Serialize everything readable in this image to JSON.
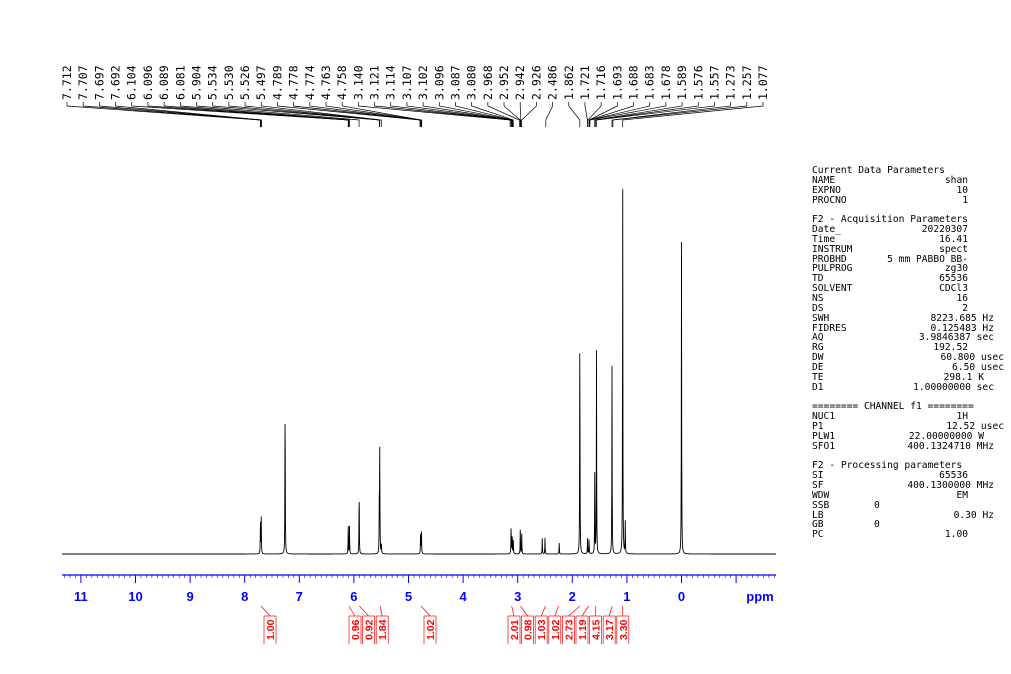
{
  "chart_data": {
    "type": "line",
    "title": "",
    "xlabel": "ppm",
    "ylabel": "",
    "xlim": [
      11.6,
      -1.75
    ],
    "x_ticks": [
      "11",
      "10",
      "9",
      "8",
      "7",
      "6",
      "5",
      "4",
      "3",
      "2",
      "1",
      "0"
    ],
    "peak_labels": [
      "7.712",
      "7.707",
      "7.697",
      "7.692",
      "6.104",
      "6.096",
      "6.089",
      "6.081",
      "5.904",
      "5.534",
      "5.530",
      "5.526",
      "5.497",
      "4.789",
      "4.778",
      "4.774",
      "4.763",
      "4.758",
      "3.140",
      "3.121",
      "3.114",
      "3.107",
      "3.102",
      "3.096",
      "3.087",
      "3.080",
      "2.968",
      "2.952",
      "2.942",
      "2.926",
      "2.486",
      "1.862",
      "1.721",
      "1.716",
      "1.693",
      "1.688",
      "1.683",
      "1.678",
      "1.589",
      "1.576",
      "1.557",
      "1.273",
      "1.257",
      "1.077"
    ],
    "peaks": [
      {
        "ppm": 7.712,
        "intensity": 0.09
      },
      {
        "ppm": 7.697,
        "intensity": 0.09
      },
      {
        "ppm": 7.26,
        "intensity": 0.44
      },
      {
        "ppm": 6.104,
        "intensity": 0.07
      },
      {
        "ppm": 6.081,
        "intensity": 0.07
      },
      {
        "ppm": 5.904,
        "intensity": 0.18
      },
      {
        "ppm": 5.534,
        "intensity": 0.16
      },
      {
        "ppm": 5.526,
        "intensity": 0.25
      },
      {
        "ppm": 5.497,
        "intensity": 0.03
      },
      {
        "ppm": 4.778,
        "intensity": 0.07
      },
      {
        "ppm": 4.763,
        "intensity": 0.06
      },
      {
        "ppm": 3.121,
        "intensity": 0.08
      },
      {
        "ppm": 3.102,
        "intensity": 0.06
      },
      {
        "ppm": 3.08,
        "intensity": 0.04
      },
      {
        "ppm": 2.952,
        "intensity": 0.07
      },
      {
        "ppm": 2.926,
        "intensity": 0.05
      },
      {
        "ppm": 2.55,
        "intensity": 0.04
      },
      {
        "ppm": 2.5,
        "intensity": 0.04
      },
      {
        "ppm": 2.24,
        "intensity": 0.03
      },
      {
        "ppm": 1.862,
        "intensity": 0.62
      },
      {
        "ppm": 1.721,
        "intensity": 0.04
      },
      {
        "ppm": 1.693,
        "intensity": 0.04
      },
      {
        "ppm": 1.589,
        "intensity": 0.2
      },
      {
        "ppm": 1.557,
        "intensity": 0.51
      },
      {
        "ppm": 1.273,
        "intensity": 0.47
      },
      {
        "ppm": 1.077,
        "intensity": 1.0
      },
      {
        "ppm": 1.03,
        "intensity": 0.08
      },
      {
        "ppm": 0.0,
        "intensity": 0.78
      }
    ],
    "integrals": [
      {
        "ppm": 7.7,
        "value": "1.00"
      },
      {
        "ppm": 6.09,
        "value": "0.96"
      },
      {
        "ppm": 5.9,
        "value": "0.92"
      },
      {
        "ppm": 5.52,
        "value": "1.84"
      },
      {
        "ppm": 4.77,
        "value": "1.02"
      },
      {
        "ppm": 3.11,
        "value": "2.01"
      },
      {
        "ppm": 2.95,
        "value": "0.98"
      },
      {
        "ppm": 2.49,
        "value": "1.03"
      },
      {
        "ppm": 2.25,
        "value": "1.02"
      },
      {
        "ppm": 1.86,
        "value": "2.73"
      },
      {
        "ppm": 1.7,
        "value": "1.19"
      },
      {
        "ppm": 1.57,
        "value": "4.15"
      },
      {
        "ppm": 1.27,
        "value": "3.17"
      },
      {
        "ppm": 1.08,
        "value": "3.30"
      }
    ]
  },
  "params": {
    "current_title": "Current Data Parameters",
    "current": [
      {
        "label": "NAME",
        "value": "shan",
        "unit": ""
      },
      {
        "label": "EXPNO",
        "value": "10",
        "unit": ""
      },
      {
        "label": "PROCNO",
        "value": "1",
        "unit": ""
      }
    ],
    "acq_title": "F2 - Acquisition Parameters",
    "acq": [
      {
        "label": "Date_",
        "value": "20220307",
        "unit": ""
      },
      {
        "label": "Time",
        "value": "16.41",
        "unit": ""
      },
      {
        "label": "INSTRUM",
        "value": "spect",
        "unit": ""
      },
      {
        "label": "PROBHD",
        "value": "5 mm PABBO BB-",
        "unit": ""
      },
      {
        "label": "PULPROG",
        "value": "zg30",
        "unit": ""
      },
      {
        "label": "TD",
        "value": "65536",
        "unit": ""
      },
      {
        "label": "SOLVENT",
        "value": "CDCl3",
        "unit": ""
      },
      {
        "label": "NS",
        "value": "16",
        "unit": ""
      },
      {
        "label": "DS",
        "value": "2",
        "unit": ""
      },
      {
        "label": "SWH",
        "value": "8223.685",
        "unit": "Hz"
      },
      {
        "label": "FIDRES",
        "value": "0.125483",
        "unit": "Hz"
      },
      {
        "label": "AQ",
        "value": "3.9846387",
        "unit": "sec"
      },
      {
        "label": "RG",
        "value": "192.52",
        "unit": ""
      },
      {
        "label": "DW",
        "value": "60.800",
        "unit": "usec"
      },
      {
        "label": "DE",
        "value": "6.50",
        "unit": "usec"
      },
      {
        "label": "TE",
        "value": "298.1",
        "unit": "K"
      },
      {
        "label": "D1",
        "value": "1.00000000",
        "unit": "sec"
      }
    ],
    "channel_title": "======== CHANNEL f1 ========",
    "channel": [
      {
        "label": "NUC1",
        "value": "1H",
        "unit": ""
      },
      {
        "label": "P1",
        "value": "12.52",
        "unit": "usec"
      },
      {
        "label": "PLW1",
        "value": "22.00000000",
        "unit": "W"
      },
      {
        "label": "SFO1",
        "value": "400.1324710",
        "unit": "MHz"
      }
    ],
    "proc_title": "F2 - Processing parameters",
    "proc": [
      {
        "label": "SI",
        "value": "65536",
        "unit": ""
      },
      {
        "label": "SF",
        "value": "400.1300000",
        "unit": "MHz"
      },
      {
        "label": "WDW",
        "value": "EM",
        "unit": ""
      },
      {
        "label": "SSB",
        "value": "0",
        "unit": ""
      },
      {
        "label": "LB",
        "value": "0.30",
        "unit": "Hz"
      },
      {
        "label": "GB",
        "value": "0",
        "unit": ""
      },
      {
        "label": "PC",
        "value": "1.00",
        "unit": ""
      }
    ]
  },
  "colors": {
    "axis": "#0000ff",
    "integral": "#ff0000",
    "trace": "#000000"
  }
}
